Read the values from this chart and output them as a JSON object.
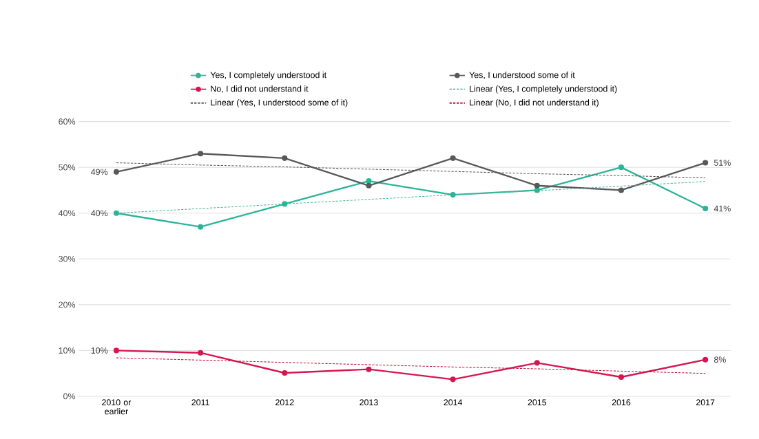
{
  "chart_data": {
    "type": "line",
    "categories": [
      "2010 or earlier",
      "2011",
      "2012",
      "2013",
      "2014",
      "2015",
      "2016",
      "2017"
    ],
    "ylim": [
      0,
      60
    ],
    "yticks": [
      {
        "value": 0,
        "label": "0%"
      },
      {
        "value": 10,
        "label": "10%"
      },
      {
        "value": 20,
        "label": "20%"
      },
      {
        "value": 30,
        "label": "30%"
      },
      {
        "value": 40,
        "label": "40%"
      },
      {
        "value": 50,
        "label": "50%"
      },
      {
        "value": 60,
        "label": "60%"
      }
    ],
    "grid": "y",
    "legend": "top",
    "marker": "circle",
    "line_style": "solid",
    "series": [
      {
        "name": "Yes, I completely understood it",
        "color": "#2bb598",
        "values": [
          40,
          37,
          42,
          47,
          44,
          45,
          50,
          41
        ],
        "value_labels": [
          "40%",
          null,
          null,
          null,
          null,
          null,
          null,
          "41%"
        ]
      },
      {
        "name": "Yes, I understood some of it",
        "color": "#595959",
        "values": [
          49,
          53,
          52,
          46,
          52,
          46,
          45,
          51
        ],
        "value_labels": [
          "49%",
          null,
          null,
          null,
          null,
          null,
          null,
          "51%"
        ]
      },
      {
        "name": "No, I did not understand it",
        "color": "#d6164f",
        "values": [
          10,
          9.5,
          5.1,
          5.9,
          3.7,
          7.3,
          4.2,
          8
        ],
        "value_labels": [
          "10%",
          null,
          null,
          null,
          null,
          null,
          null,
          "8%"
        ]
      },
      {
        "name": "Linear (Yes, I completely understood it)",
        "color": "#4fb89f",
        "marker": "none",
        "line_style": "dashed",
        "values": [
          40.0,
          41.0,
          42.0,
          43.0,
          44.0,
          44.9,
          45.9,
          46.9
        ]
      },
      {
        "name": "Linear (Yes, I understood some of it)",
        "color": "#595959",
        "marker": "none",
        "line_style": "dashed",
        "values": [
          51.0,
          50.5,
          50.1,
          49.6,
          49.1,
          48.6,
          48.2,
          47.7
        ]
      },
      {
        "name": "Linear (No, I did not understand it)",
        "color": "#c0143c",
        "marker": "none",
        "line_style": "dashed",
        "values": [
          8.4,
          7.9,
          7.4,
          6.9,
          6.4,
          6.0,
          5.5,
          5.0
        ]
      }
    ]
  }
}
